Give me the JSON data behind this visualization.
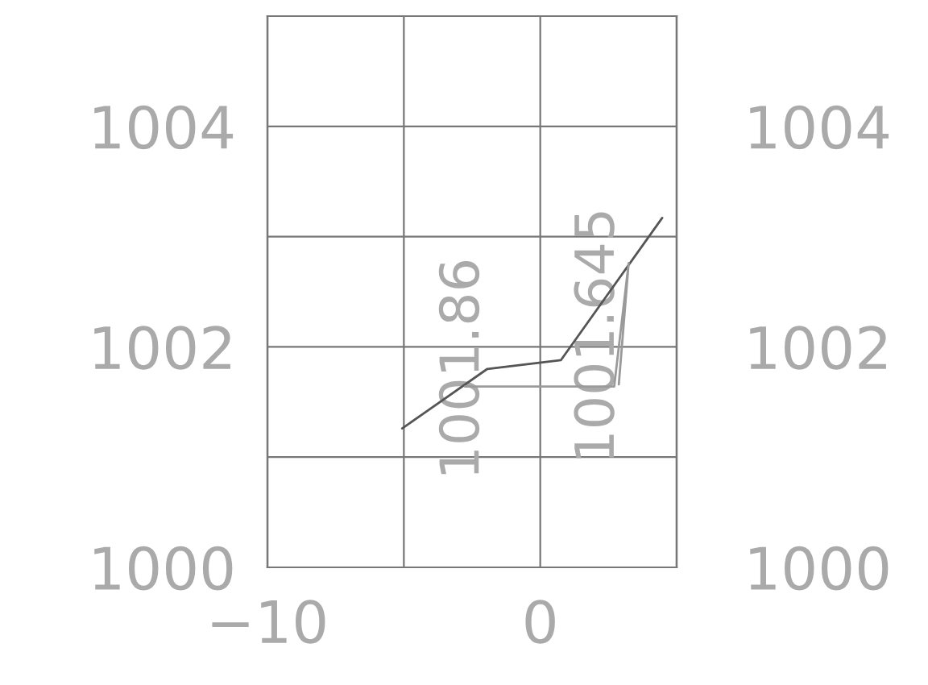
{
  "chart_data": {
    "type": "line",
    "series": [
      {
        "color": "#555555",
        "x": [
          -5.06,
          -1.94,
          0.76,
          4.47
        ],
        "values": [
          1001.26,
          1001.8,
          1001.88,
          1003.17
        ]
      },
      {
        "color": "#9a9a9a",
        "x": [
          -2.76,
          2.71,
          3.24,
          2.88
        ],
        "values": [
          1001.64,
          1001.64,
          1002.76,
          1001.66
        ]
      }
    ],
    "xlim": [
      -10,
      5
    ],
    "xticks": [
      -10,
      {
        "value": -5,
        "label": null
      },
      0,
      {
        "value": 5,
        "label": null
      }
    ],
    "ylim": [
      1000,
      1005
    ],
    "yticks": [
      1000,
      {
        "value": 1001,
        "label": null
      },
      1002,
      {
        "value": 1003,
        "label": null
      },
      1004,
      {
        "value": 1005,
        "label": null
      }
    ],
    "y2lim": [
      1000,
      1005
    ],
    "y2ticks": [
      1000,
      {
        "value": 1001,
        "label": null
      },
      1002,
      {
        "value": 1003,
        "label": null
      },
      1004,
      {
        "value": 1005,
        "label": null
      }
    ],
    "annotations": [
      "1001.86",
      "1001.645"
    ],
    "grid": true,
    "marker": "none",
    "line_style": "solid",
    "legend": false
  }
}
